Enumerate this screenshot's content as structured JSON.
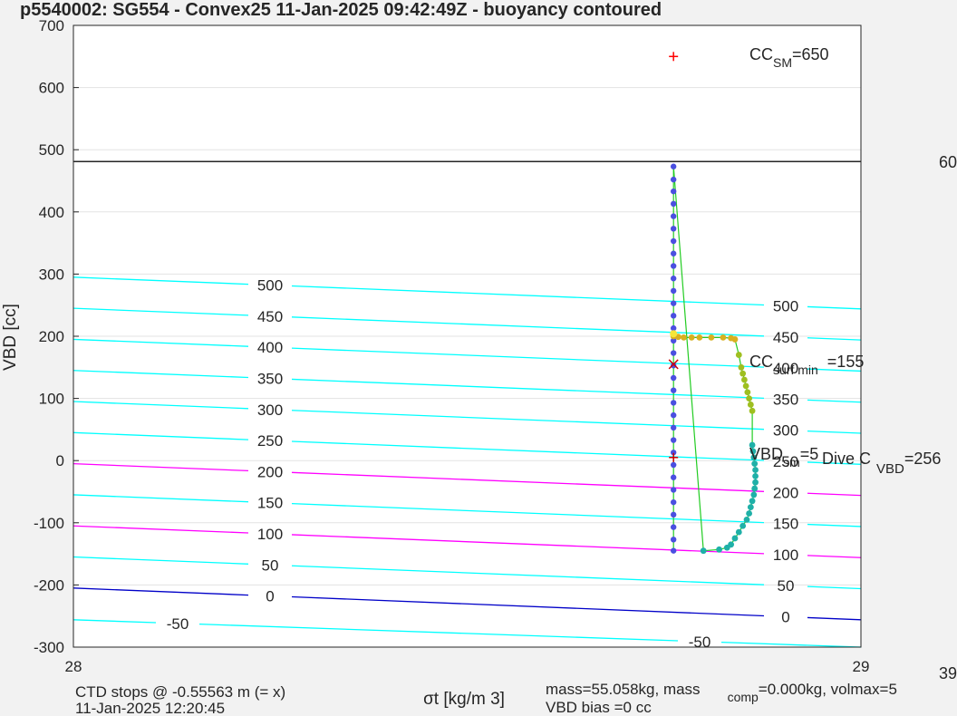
{
  "chart_data": {
    "type": "scatter",
    "title": "p5540002: SG554 - Convex25 11-Jan-2025 09:42:49Z - buoyancy contoured",
    "xlabel": "σt [kg/m 3]",
    "ylabel": "VBD [cc]",
    "xlim": [
      28,
      29
    ],
    "ylim": [
      -300,
      700
    ],
    "x_ticks": [
      "28",
      "29"
    ],
    "y_ticks": [
      "700",
      "600",
      "500",
      "400",
      "300",
      "200",
      "100",
      "0",
      "-100",
      "-200",
      "-300"
    ],
    "grid": "on",
    "reference_line_y": 481,
    "contours": [
      {
        "level": -50,
        "left_label": "-50",
        "right_label": "-50",
        "color": "#00ffff",
        "y_left": -256,
        "y_right": -300
      },
      {
        "level": 0,
        "left_label": "0",
        "right_label": "0",
        "color": "#0000c8",
        "y_left": -205,
        "y_right": -256
      },
      {
        "level": 50,
        "left_label": "50",
        "right_label": "50",
        "color": "#00ffff",
        "y_left": -155,
        "y_right": -206
      },
      {
        "level": 100,
        "left_label": "100",
        "right_label": "100",
        "color": "#ff00ff",
        "y_left": -105,
        "y_right": -156
      },
      {
        "level": 150,
        "left_label": "150",
        "right_label": "150",
        "color": "#00ffff",
        "y_left": -55,
        "y_right": -106
      },
      {
        "level": 200,
        "left_label": "200",
        "right_label": "200",
        "color": "#ff00ff",
        "y_left": -5,
        "y_right": -56
      },
      {
        "level": 250,
        "left_label": "250",
        "right_label": "250",
        "color": "#00ffff",
        "y_left": 45,
        "y_right": -6
      },
      {
        "level": 300,
        "left_label": "300",
        "right_label": "300",
        "color": "#00ffff",
        "y_left": 95,
        "y_right": 44
      },
      {
        "level": 350,
        "left_label": "350",
        "right_label": "350",
        "color": "#00ffff",
        "y_left": 145,
        "y_right": 94
      },
      {
        "level": 400,
        "left_label": "400",
        "right_label": "400",
        "color": "#00ffff",
        "y_left": 195,
        "y_right": 144
      },
      {
        "level": 450,
        "left_label": "450",
        "right_label": "450",
        "color": "#00ffff",
        "y_left": 245,
        "y_right": 194
      },
      {
        "level": 500,
        "left_label": "500",
        "right_label": "500",
        "color": "#00ffff",
        "y_left": 295,
        "y_right": 244
      }
    ],
    "dive_profile": {
      "vertical": {
        "x": 28.762,
        "y": [
          473,
          452,
          433,
          413,
          393,
          373,
          353,
          333,
          313,
          293,
          273,
          253,
          233,
          213,
          193,
          173,
          153,
          133,
          113,
          93,
          73,
          53,
          33,
          13,
          -7,
          -27,
          -47,
          -67,
          -87,
          -107,
          -127,
          -145
        ],
        "color": "#4a4fe0"
      },
      "shallow_segment": {
        "x": [
          28.762,
          28.768,
          28.775,
          28.785,
          28.795,
          28.81,
          28.825,
          28.835,
          28.84
        ],
        "y": [
          200,
          199,
          198,
          198,
          198,
          198,
          198,
          197,
          195
        ],
        "color": "#d8b020"
      },
      "descent_segment": {
        "x": [
          28.845,
          28.848,
          28.85,
          28.852,
          28.854,
          28.856,
          28.858,
          28.86,
          28.862
        ],
        "y": [
          170,
          150,
          140,
          130,
          120,
          110,
          100,
          90,
          80
        ],
        "color": "#9fbf20"
      },
      "deep_segment": {
        "x": [
          28.862,
          28.863,
          28.864,
          28.865,
          28.866,
          28.866,
          28.866,
          28.865,
          28.864,
          28.862,
          28.86,
          28.858,
          28.855,
          28.85,
          28.845,
          28.84,
          28.835,
          28.83,
          28.82,
          28.8
        ],
        "y": [
          25,
          15,
          5,
          -5,
          -15,
          -25,
          -35,
          -45,
          -55,
          -65,
          -75,
          -85,
          -95,
          -105,
          -115,
          -125,
          -135,
          -140,
          -143,
          -145
        ],
        "color": "#1fb0a8"
      }
    },
    "markers": [
      {
        "label": "CC SM",
        "value": 650,
        "x": 28.762,
        "color": "#ff0000",
        "symbol": "+"
      },
      {
        "label": "CC surf min",
        "value": 155,
        "x": 28.762,
        "color": "#cc0000",
        "symbol": "x"
      },
      {
        "label": "VBD sm",
        "value": 5,
        "x": 28.762,
        "color": "#cc0000",
        "symbol": "+"
      }
    ],
    "annotations": {
      "cc_sm": {
        "main": "CC",
        "sub": "SM",
        "rest": "=650"
      },
      "cc_surf": {
        "main": "CC",
        "sub": "surf min",
        "rest": "=155"
      },
      "vbd_sm": {
        "main": "VBD",
        "sub": "sm",
        "rest": "=5"
      },
      "dive_c": {
        "main": "Dive C",
        "sub": "VBD",
        "rest": "=256"
      },
      "right_top": "60",
      "right_bottom": "39"
    },
    "footer": {
      "line1": "CTD stops @ -0.55563 m (= x)",
      "line2": "11-Jan-2025 12:20:45",
      "mass_line": "mass=55.058kg, mass",
      "mass_sub": "comp",
      "mass_rest": "=0.000kg, volmax=5",
      "bias_line": "VBD bias =0 cc"
    }
  }
}
